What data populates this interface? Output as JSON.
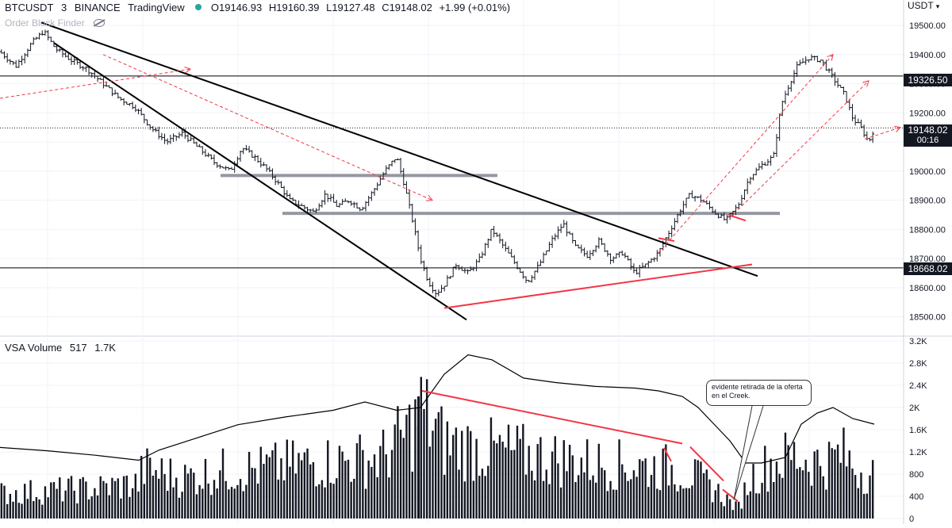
{
  "legend": {
    "symbol": "BTCUSDT",
    "interval": "3",
    "exchange": "BINANCE",
    "source": "TradingView",
    "open_label": "O",
    "open": "19146.93",
    "high_label": "H",
    "high": "19160.39",
    "low_label": "L",
    "low": "19127.48",
    "close_label": "C",
    "close": "19148.02",
    "change": "+1.99 (+0.01%)"
  },
  "indicator_name": "Order Block Finder",
  "currency": "USDT",
  "volume_legend": {
    "name": "VSA Volume",
    "param": "517",
    "value": "1.7K"
  },
  "annotation": "evidente retirada de la oferta en el Creek.",
  "price_tags": {
    "resistance": "19326.50",
    "current": "19148.02",
    "countdown": "00:16",
    "support": "18668.02"
  },
  "colors": {
    "candle": "#131722",
    "trendline": "#000000",
    "red_line": "#f23645",
    "red_dashed": "#f23645",
    "zone": "#9598a1",
    "up_dot": "#26a69a"
  },
  "chart_data": [
    {
      "type": "line",
      "panel": "price",
      "series_kind": "ohlc-bars",
      "ylim": [
        18450,
        19560
      ],
      "y_ticks": [
        "19500.00",
        "19400.00",
        "19300.00",
        "19200.00",
        "19100.00",
        "19000.00",
        "18900.00",
        "18800.00",
        "18700.00",
        "18600.00",
        "18500.00"
      ],
      "y_tick_values": [
        19500,
        19400,
        19300,
        19200,
        19100,
        19000,
        18900,
        18800,
        18700,
        18600,
        18500
      ],
      "bar_count": 300,
      "close_path": [
        [
          0,
          19410
        ],
        [
          20,
          19360
        ],
        [
          40,
          19440
        ],
        [
          55,
          19480
        ],
        [
          70,
          19420
        ],
        [
          90,
          19380
        ],
        [
          110,
          19350
        ],
        [
          130,
          19300
        ],
        [
          150,
          19250
        ],
        [
          170,
          19220
        ],
        [
          190,
          19150
        ],
        [
          210,
          19100
        ],
        [
          230,
          19130
        ],
        [
          250,
          19080
        ],
        [
          270,
          19030
        ],
        [
          290,
          19000
        ],
        [
          305,
          19080
        ],
        [
          320,
          19050
        ],
        [
          335,
          19010
        ],
        [
          350,
          18960
        ],
        [
          365,
          18900
        ],
        [
          380,
          18880
        ],
        [
          395,
          18860
        ],
        [
          410,
          18920
        ],
        [
          425,
          18880
        ],
        [
          440,
          18900
        ],
        [
          455,
          18870
        ],
        [
          470,
          18930
        ],
        [
          485,
          19000
        ],
        [
          500,
          19050
        ],
        [
          510,
          18950
        ],
        [
          520,
          18830
        ],
        [
          530,
          18700
        ],
        [
          540,
          18620
        ],
        [
          550,
          18580
        ],
        [
          560,
          18610
        ],
        [
          575,
          18680
        ],
        [
          590,
          18650
        ],
        [
          605,
          18700
        ],
        [
          620,
          18800
        ],
        [
          635,
          18740
        ],
        [
          650,
          18680
        ],
        [
          665,
          18620
        ],
        [
          680,
          18680
        ],
        [
          695,
          18760
        ],
        [
          710,
          18820
        ],
        [
          725,
          18740
        ],
        [
          740,
          18710
        ],
        [
          755,
          18760
        ],
        [
          770,
          18700
        ],
        [
          785,
          18720
        ],
        [
          800,
          18650
        ],
        [
          815,
          18680
        ],
        [
          830,
          18720
        ],
        [
          845,
          18800
        ],
        [
          860,
          18880
        ],
        [
          870,
          18920
        ],
        [
          885,
          18900
        ],
        [
          900,
          18860
        ],
        [
          915,
          18830
        ],
        [
          930,
          18880
        ],
        [
          945,
          18980
        ],
        [
          960,
          19020
        ],
        [
          975,
          19050
        ],
        [
          985,
          19230
        ],
        [
          995,
          19300
        ],
        [
          1005,
          19360
        ],
        [
          1020,
          19390
        ],
        [
          1035,
          19380
        ],
        [
          1045,
          19340
        ],
        [
          1055,
          19300
        ],
        [
          1065,
          19260
        ],
        [
          1075,
          19180
        ],
        [
          1085,
          19150
        ],
        [
          1095,
          19100
        ],
        [
          1102,
          19148
        ]
      ],
      "support_level": 18668.02,
      "resistance_level": 19326.5,
      "trendlines": [
        {
          "from": [
            52,
            19510
          ],
          "to": [
            955,
            18640
          ],
          "color": "trendline",
          "style": "solid"
        },
        {
          "from": [
            68,
            19440
          ],
          "to": [
            588,
            18490
          ],
          "color": "trendline",
          "style": "solid"
        },
        {
          "from": [
            560,
            18530
          ],
          "to": [
            948,
            18680
          ],
          "color": "red_line",
          "style": "solid"
        }
      ],
      "dashed_arrows": [
        {
          "from": [
            0,
            19250
          ],
          "to": [
            240,
            19350
          ]
        },
        {
          "from": [
            130,
            19400
          ],
          "to": [
            545,
            18900
          ]
        },
        {
          "from": [
            830,
            18720
          ],
          "to": [
            1050,
            19400
          ]
        },
        {
          "from": [
            920,
            18840
          ],
          "to": [
            1095,
            19310
          ]
        },
        {
          "from": [
            1090,
            19110
          ],
          "to": [
            1135,
            19150
          ]
        }
      ],
      "zones": [
        {
          "x": [
            278,
            627
          ],
          "y": 18985
        },
        {
          "x": [
            356,
            983
          ],
          "y": 18855
        }
      ]
    },
    {
      "type": "bar",
      "panel": "volume",
      "name": "VSA Volume",
      "ylim": [
        0,
        3200
      ],
      "y_ticks": [
        "3.2K",
        "2.8K",
        "2.4K",
        "2K",
        "1.6K",
        "1.2K",
        "800",
        "400",
        "0"
      ],
      "y_tick_values": [
        3200,
        2800,
        2400,
        2000,
        1600,
        1200,
        800,
        400,
        0
      ],
      "volume_profile": [
        [
          0,
          500
        ],
        [
          60,
          550
        ],
        [
          120,
          600
        ],
        [
          175,
          700
        ],
        [
          180,
          1000
        ],
        [
          230,
          800
        ],
        [
          280,
          950
        ],
        [
          330,
          1000
        ],
        [
          380,
          1100
        ],
        [
          430,
          1150
        ],
        [
          480,
          1200
        ],
        [
          525,
          1900
        ],
        [
          530,
          2200
        ],
        [
          560,
          1500
        ],
        [
          600,
          1400
        ],
        [
          650,
          1300
        ],
        [
          700,
          1200
        ],
        [
          750,
          1100
        ],
        [
          800,
          1050
        ],
        [
          850,
          1000
        ],
        [
          880,
          800
        ],
        [
          900,
          600
        ],
        [
          915,
          400
        ],
        [
          930,
          200
        ],
        [
          945,
          800
        ],
        [
          970,
          1100
        ],
        [
          1000,
          1250
        ],
        [
          1040,
          1100
        ],
        [
          1060,
          1300
        ],
        [
          1080,
          1000
        ],
        [
          1102,
          900
        ]
      ],
      "average_line": [
        [
          0,
          1280
        ],
        [
          60,
          1220
        ],
        [
          120,
          1140
        ],
        [
          175,
          1050
        ],
        [
          200,
          1230
        ],
        [
          250,
          1460
        ],
        [
          300,
          1690
        ],
        [
          360,
          1830
        ],
        [
          420,
          1950
        ],
        [
          460,
          2100
        ],
        [
          500,
          1950
        ],
        [
          530,
          2000
        ],
        [
          560,
          2600
        ],
        [
          590,
          2950
        ],
        [
          620,
          2860
        ],
        [
          660,
          2530
        ],
        [
          700,
          2450
        ],
        [
          750,
          2380
        ],
        [
          800,
          2350
        ],
        [
          830,
          2300
        ],
        [
          860,
          2200
        ],
        [
          880,
          2000
        ],
        [
          900,
          1700
        ],
        [
          920,
          1400
        ],
        [
          940,
          1000
        ],
        [
          960,
          1000
        ],
        [
          990,
          1100
        ],
        [
          1010,
          1700
        ],
        [
          1030,
          1900
        ],
        [
          1050,
          2000
        ],
        [
          1075,
          1800
        ],
        [
          1102,
          1700
        ]
      ],
      "red_lines": [
        {
          "from": [
            532,
            2300
          ],
          "to": [
            860,
            1350
          ]
        },
        {
          "from": [
            837,
            1270
          ],
          "to": [
            846,
            1030
          ]
        },
        {
          "from": [
            870,
            1290
          ],
          "to": [
            912,
            680
          ]
        },
        {
          "from": [
            911,
            520
          ],
          "to": [
            930,
            310
          ]
        }
      ],
      "callout_pointer": [
        930,
        1050
      ]
    }
  ]
}
